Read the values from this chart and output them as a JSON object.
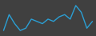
{
  "values": [
    11.0,
    14.5,
    12.5,
    11.0,
    11.5,
    13.5,
    13.0,
    12.5,
    13.5,
    13.0,
    14.0,
    14.5,
    13.5,
    16.5,
    15.0,
    11.5,
    13.0
  ],
  "line_color": "#2b9fd4",
  "background_color": "#404040",
  "linewidth": 1.0
}
